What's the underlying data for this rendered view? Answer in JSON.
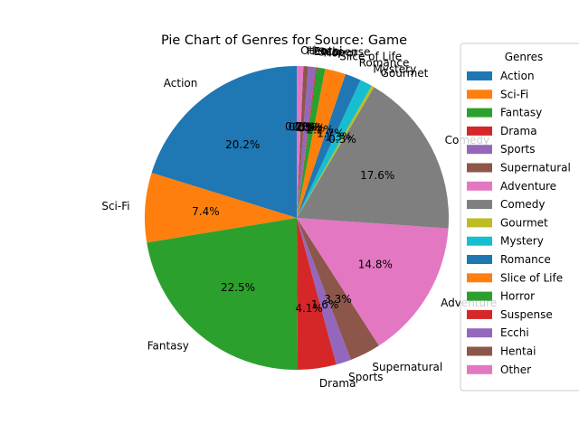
{
  "chart_data": {
    "type": "pie",
    "title": "Pie Chart of Genres for Source: Game",
    "legend": {
      "title": "Genres",
      "placement": "right"
    },
    "start_angle_deg": 90,
    "direction": "counterclockwise",
    "slices": [
      {
        "label": "Action",
        "value": 20.2,
        "pct_label": "20.2%",
        "color": "#1f77b4"
      },
      {
        "label": "Sci-Fi",
        "value": 7.4,
        "pct_label": "7.4%",
        "color": "#ff7f0e"
      },
      {
        "label": "Fantasy",
        "value": 22.5,
        "pct_label": "22.5%",
        "color": "#2ca02c"
      },
      {
        "label": "Drama",
        "value": 4.1,
        "pct_label": "4.1%",
        "color": "#d62728"
      },
      {
        "label": "Sports",
        "value": 1.6,
        "pct_label": "1.6%",
        "color": "#9467bd"
      },
      {
        "label": "Supernatural",
        "value": 3.3,
        "pct_label": "3.3%",
        "color": "#8c564b"
      },
      {
        "label": "Adventure",
        "value": 14.8,
        "pct_label": "14.8%",
        "color": "#e377c2"
      },
      {
        "label": "Comedy",
        "value": 17.6,
        "pct_label": "17.6%",
        "color": "#7f7f7f"
      },
      {
        "label": "Gourmet",
        "value": 0.3,
        "pct_label": "0.3%",
        "color": "#bcbd22"
      },
      {
        "label": "Mystery",
        "value": 1.3,
        "pct_label": "1.3%",
        "color": "#17becf"
      },
      {
        "label": "Romance",
        "value": 1.7,
        "pct_label": "1.7%",
        "color": "#1f77b4"
      },
      {
        "label": "Slice of Life",
        "value": 2.2,
        "pct_label": "2.2%",
        "color": "#ff7f0e"
      },
      {
        "label": "Horror",
        "value": 0.9,
        "pct_label": "0.9%",
        "color": "#2ca02c"
      },
      {
        "label": "Suspense",
        "value": 0.1,
        "pct_label": "0.1%",
        "color": "#d62728"
      },
      {
        "label": "Ecchi",
        "value": 0.8,
        "pct_label": "0.8%",
        "color": "#9467bd"
      },
      {
        "label": "Hentai",
        "value": 0.5,
        "pct_label": "0.5%",
        "color": "#8c564b"
      },
      {
        "label": "Other",
        "value": 0.7,
        "pct_label": "0.7%",
        "color": "#e377c2"
      }
    ]
  }
}
